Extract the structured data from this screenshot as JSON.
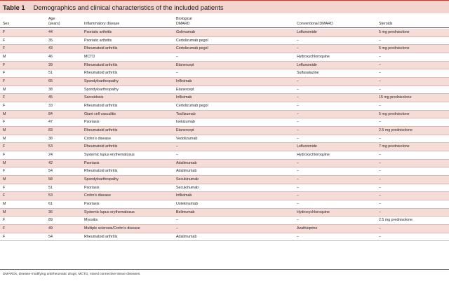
{
  "table": {
    "label": "Table 1",
    "caption": "Demographics and clinical characteristics of the included patients",
    "headers": {
      "sex": "Sex",
      "age_line1": "Age",
      "age_line2": "(years)",
      "disease": "Inflammatory disease",
      "bio_line1": "Biological",
      "bio_line2": "DMARD",
      "conventional": "Conventional DMARD",
      "steroids": "Steroids"
    },
    "rows": [
      {
        "sex": "F",
        "age": "44",
        "disease": "Psoriatic arthritis",
        "bio": "Golimumab",
        "conv": "Leflunomide",
        "ster": "5 mg prednisolone"
      },
      {
        "sex": "F",
        "age": "35",
        "disease": "Psoriatic arthritis",
        "bio": "Certolizumab pegol",
        "conv": "–",
        "ster": "–"
      },
      {
        "sex": "F",
        "age": "43",
        "disease": "Rheumatoid arthritis",
        "bio": "Certolizumab pegol",
        "conv": "–",
        "ster": "5 mg prednisolone"
      },
      {
        "sex": "M",
        "age": "46",
        "disease": "MCTD",
        "bio": "–",
        "conv": "Hydroxychloroquine",
        "ster": "–"
      },
      {
        "sex": "F",
        "age": "39",
        "disease": "Rheumatoid arthritis",
        "bio": "Etanercept",
        "conv": "Leflunomide",
        "ster": "–"
      },
      {
        "sex": "F",
        "age": "51",
        "disease": "Rheumatoid arthritis",
        "bio": "–",
        "conv": "Sulfasalazine",
        "ster": "–"
      },
      {
        "sex": "F",
        "age": "65",
        "disease": "Spondyloarthropathy",
        "bio": "Infliximab",
        "conv": "–",
        "ster": "–"
      },
      {
        "sex": "M",
        "age": "38",
        "disease": "Spondyloarthropathy",
        "bio": "Etanercept",
        "conv": "–",
        "ster": "–"
      },
      {
        "sex": "F",
        "age": "45",
        "disease": "Sarcoidosis",
        "bio": "Infliximab",
        "conv": "–",
        "ster": "15 mg prednisolone"
      },
      {
        "sex": "F",
        "age": "33",
        "disease": "Rheumatoid arthritis",
        "bio": "Certolizumab pegol",
        "conv": "–",
        "ster": "–"
      },
      {
        "sex": "M",
        "age": "84",
        "disease": "Giant cell vasculitis",
        "bio": "Tocilizumab",
        "conv": "–",
        "ster": "5 mg prednisolone"
      },
      {
        "sex": "F",
        "age": "47",
        "disease": "Psoriasis",
        "bio": "Ixekizumab",
        "conv": "–",
        "ster": "–"
      },
      {
        "sex": "M",
        "age": "83",
        "disease": "Rheumatoid arthritis",
        "bio": "Etanercept",
        "conv": "–",
        "ster": "2.5 mg prednisolone"
      },
      {
        "sex": "M",
        "age": "38",
        "disease": "Crohn’s disease",
        "bio": "Vedolizumab",
        "conv": "–",
        "ster": "–"
      },
      {
        "sex": "F",
        "age": "53",
        "disease": "Rheumatoid arthritis",
        "bio": "–",
        "conv": "Leflunomide",
        "ster": "7 mg prednisolone"
      },
      {
        "sex": "F",
        "age": "24",
        "disease": "Systemic lupus erythematosus",
        "bio": "–",
        "conv": "Hydroxychloroquine",
        "ster": "–"
      },
      {
        "sex": "M",
        "age": "42",
        "disease": "Psoriasis",
        "bio": "Adalimumab",
        "conv": "–",
        "ster": "–"
      },
      {
        "sex": "F",
        "age": "54",
        "disease": "Rheumatoid arthritis",
        "bio": "Adalimumab",
        "conv": "–",
        "ster": "–"
      },
      {
        "sex": "M",
        "age": "58",
        "disease": "Spondyloarthropathy",
        "bio": "Secukinumab",
        "conv": "–",
        "ster": "–"
      },
      {
        "sex": "F",
        "age": "51",
        "disease": "Psoriasis",
        "bio": "Secukinumab",
        "conv": "–",
        "ster": "–"
      },
      {
        "sex": "F",
        "age": "53",
        "disease": "Crohn’s disease",
        "bio": "Infliximab",
        "conv": "–",
        "ster": "–"
      },
      {
        "sex": "M",
        "age": "61",
        "disease": "Psoriasis",
        "bio": "Ustekinumab",
        "conv": "–",
        "ster": "–"
      },
      {
        "sex": "M",
        "age": "36",
        "disease": "Systemic lupus erythematosus",
        "bio": "Belimumab",
        "conv": "Hydroxychloroquine",
        "ster": "–"
      },
      {
        "sex": "F",
        "age": "89",
        "disease": "Myositis",
        "bio": "–",
        "conv": "–",
        "ster": "2.5 mg prednisolone"
      },
      {
        "sex": "F",
        "age": "49",
        "disease": "Multiple sclerosis/Crohn’s disease",
        "bio": "–",
        "conv": "Azathioprine",
        "ster": "–"
      },
      {
        "sex": "F",
        "age": "54",
        "disease": "Rheumatoid arthritis",
        "bio": "Adalimumab",
        "conv": "–",
        "ster": "–"
      }
    ],
    "footnote": "DMARDs, disease-modifying antirheumatic drugs; MCTD, mixed connective tissue diseases."
  }
}
